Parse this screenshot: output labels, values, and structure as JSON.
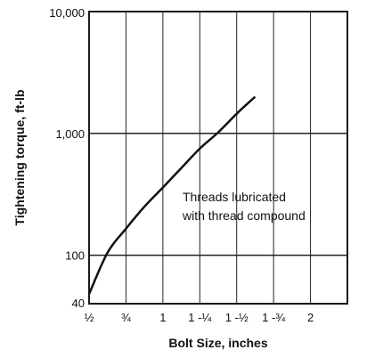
{
  "chart_data": {
    "type": "line",
    "title": "",
    "xlabel": "Bolt Size, inches",
    "ylabel": "Tightening torque, ft-lb",
    "yscale": "log",
    "ylim": [
      40,
      10000
    ],
    "xlim": [
      0.5,
      2.25
    ],
    "x_ticks": [
      0.5,
      0.75,
      1.0,
      1.25,
      1.5,
      1.75,
      2.0
    ],
    "x_tick_labels": [
      "½",
      "¾",
      "1",
      "1 -¼",
      "1 -½",
      "1 -¾",
      "2"
    ],
    "y_ticks": [
      40,
      100,
      1000,
      10000
    ],
    "y_tick_labels": [
      "40",
      "100",
      "1,000",
      "10,000"
    ],
    "x_gridlines": [
      0.5,
      0.75,
      1.0,
      1.25,
      1.5,
      1.75,
      2.0,
      2.25
    ],
    "y_gridlines": [
      100,
      1000
    ],
    "series": [
      {
        "name": "Threads lubricated with thread compound",
        "x": [
          0.5,
          0.625,
          0.75,
          0.875,
          1.0,
          1.125,
          1.25,
          1.375,
          1.5,
          1.625
        ],
        "values": [
          48,
          105,
          165,
          250,
          360,
          520,
          750,
          1020,
          1450,
          2000
        ]
      }
    ],
    "annotation": {
      "line1": "Threads lubricated",
      "line2": "with thread compound"
    }
  }
}
